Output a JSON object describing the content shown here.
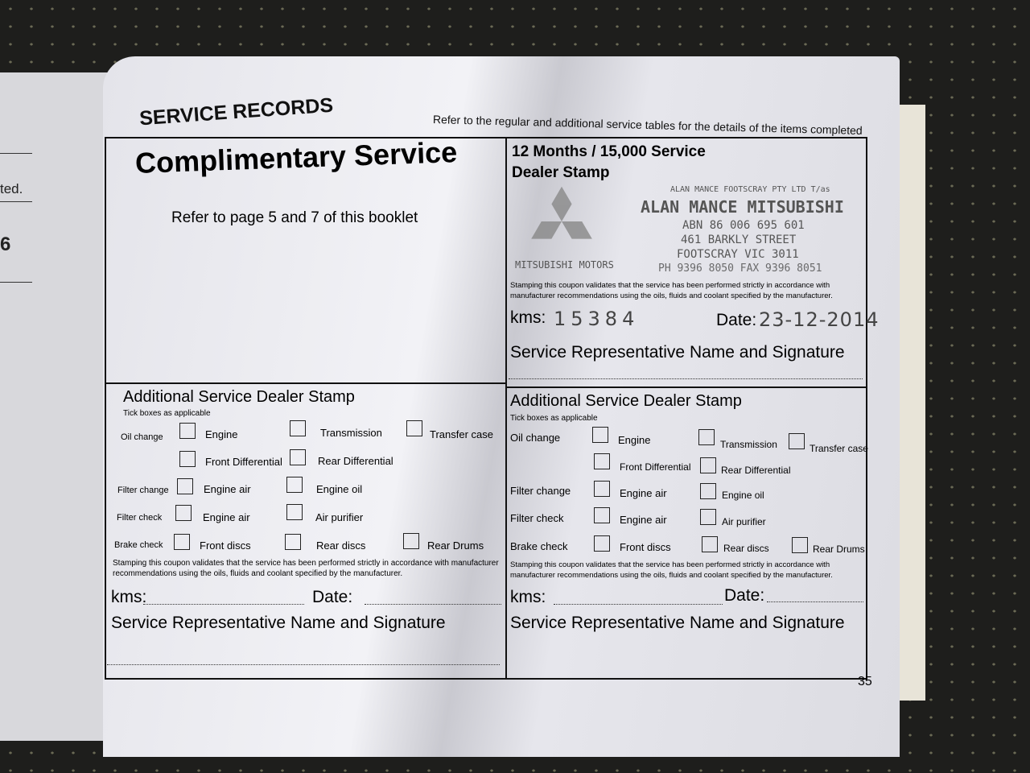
{
  "left_page": {
    "fragment_text": "ted.",
    "fragment_number": "6"
  },
  "header": {
    "title": "SERVICE RECORDS",
    "note": "Refer to the regular and additional service tables for the details of the items completed"
  },
  "complimentary": {
    "title": "Complimentary Service",
    "text": "Refer to page 5 and 7 of this booklet"
  },
  "service_12m": {
    "title": "12 Months / 15,000 Service",
    "dealer_stamp": "Dealer Stamp",
    "stamp": {
      "line1": "ALAN MANCE FOOTSCRAY PTY LTD T/as",
      "line2": "ALAN MANCE MITSUBISHI",
      "line3": "ABN 86 006 695 601",
      "line4": "461 BARKLY STREET",
      "line5": "FOOTSCRAY VIC 3011",
      "line6": "PH 9396 8050 FAX 9396 8051",
      "logo_text": "MITSUBISHI MOTORS"
    },
    "kms_value": "15384",
    "date_value": "23-12-2014"
  },
  "common": {
    "stamping_text": "Stamping this coupon validates that the service has been performed strictly in accordance with manufacturer recommendations using the oils, fluids and coolant specified by the manufacturer.",
    "kms_label": "kms:",
    "date_label": "Date:",
    "signature_label": "Service Representative Name and Signature",
    "additional_title": "Additional Service Dealer Stamp",
    "tick_note": "Tick boxes as applicable",
    "oil_change": "Oil change",
    "filter_change": "Filter change",
    "filter_check": "Filter check",
    "brake_check": "Brake check",
    "engine": "Engine",
    "transmission": "Transmission",
    "transfer_case": "Transfer case",
    "front_diff": "Front Differential",
    "rear_diff": "Rear Differential",
    "engine_air": "Engine air",
    "engine_oil": "Engine oil",
    "air_purifier": "Air purifier",
    "front_discs": "Front discs",
    "rear_discs": "Rear discs",
    "rear_drums": "Rear Drums"
  },
  "page_number": "35"
}
